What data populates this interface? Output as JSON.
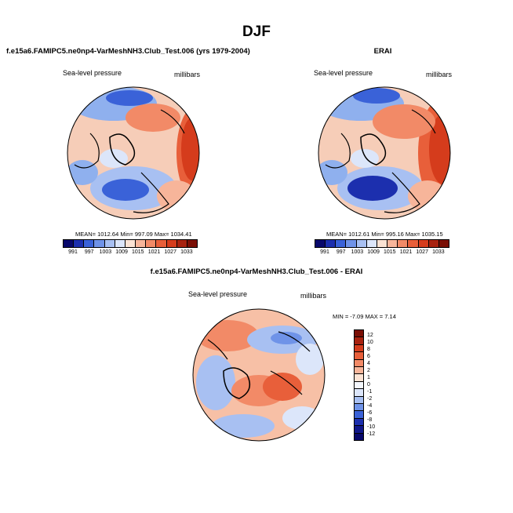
{
  "page_title": "DJF",
  "panels": [
    {
      "title": "f.e15a6.FAMIPC5.ne0np4-VarMeshNH3.Club_Test.006 (yrs 1979-2004)",
      "variable": "Sea-level pressure",
      "units": "millibars",
      "stats": "MEAN= 1012.64  Min= 997.09  Max= 1034.41",
      "colorbar_ticks": [
        "991",
        "997",
        "1003",
        "1009",
        "1015",
        "1021",
        "1027",
        "1033"
      ]
    },
    {
      "title": "ERAI",
      "variable": "Sea-level pressure",
      "units": "millibars",
      "stats": "MEAN= 1012.61  Min= 995.16  Max= 1035.15",
      "colorbar_ticks": [
        "991",
        "997",
        "1003",
        "1009",
        "1015",
        "1021",
        "1027",
        "1033"
      ]
    },
    {
      "title": "f.e15a6.FAMIPC5.ne0np4-VarMeshNH3.Club_Test.006 - ERAI",
      "variable": "Sea-level pressure",
      "units": "millibars",
      "stats": "MIN = -7.09  MAX =  7.14",
      "colorbar_ticks": [
        "12",
        "10",
        "8",
        "6",
        "4",
        "2",
        "1",
        "0",
        "-1",
        "-2",
        "-4",
        "-6",
        "-8",
        "-10",
        "-12"
      ]
    }
  ],
  "chart_data": [
    {
      "type": "heatmap",
      "title": "f.e15a6.FAMIPC5.ne0np4-VarMeshNH3.Club_Test.006 (yrs 1979-2004)",
      "subtitle": "Sea-level pressure",
      "units": "millibars",
      "projection": "north polar stereographic",
      "mean": 1012.64,
      "min": 997.09,
      "max": 1034.41,
      "levels": [
        991,
        997,
        1003,
        1009,
        1015,
        1021,
        1027,
        1033
      ]
    },
    {
      "type": "heatmap",
      "title": "ERAI",
      "subtitle": "Sea-level pressure",
      "units": "millibars",
      "projection": "north polar stereographic",
      "mean": 1012.61,
      "min": 995.16,
      "max": 1035.15,
      "levels": [
        991,
        997,
        1003,
        1009,
        1015,
        1021,
        1027,
        1033
      ]
    },
    {
      "type": "heatmap",
      "title": "f.e15a6.FAMIPC5.ne0np4-VarMeshNH3.Club_Test.006 - ERAI",
      "subtitle": "Sea-level pressure",
      "units": "millibars",
      "projection": "north polar stereographic",
      "min": -7.09,
      "max": 7.14,
      "levels": [
        12,
        10,
        8,
        6,
        4,
        2,
        1,
        0,
        -1,
        -2,
        -4,
        -6,
        -8,
        -10,
        -12
      ]
    }
  ],
  "colors": {
    "abs_scale": [
      "#08086b",
      "#1c2fae",
      "#3a62d8",
      "#6f93e8",
      "#a8c0f2",
      "#dce6fa",
      "#fbe3d4",
      "#f7b59a",
      "#f28a67",
      "#e85f3a",
      "#d53c1c",
      "#a8220f",
      "#7a0f05"
    ],
    "diff_scale": [
      "#7a0f05",
      "#a8220f",
      "#d53c1c",
      "#e85f3a",
      "#f28a67",
      "#f7b59a",
      "#fbe3d4",
      "#f4f7fd",
      "#dce6fa",
      "#a8c0f2",
      "#6f93e8",
      "#3a62d8",
      "#1c2fae",
      "#10178a",
      "#08086b"
    ]
  }
}
